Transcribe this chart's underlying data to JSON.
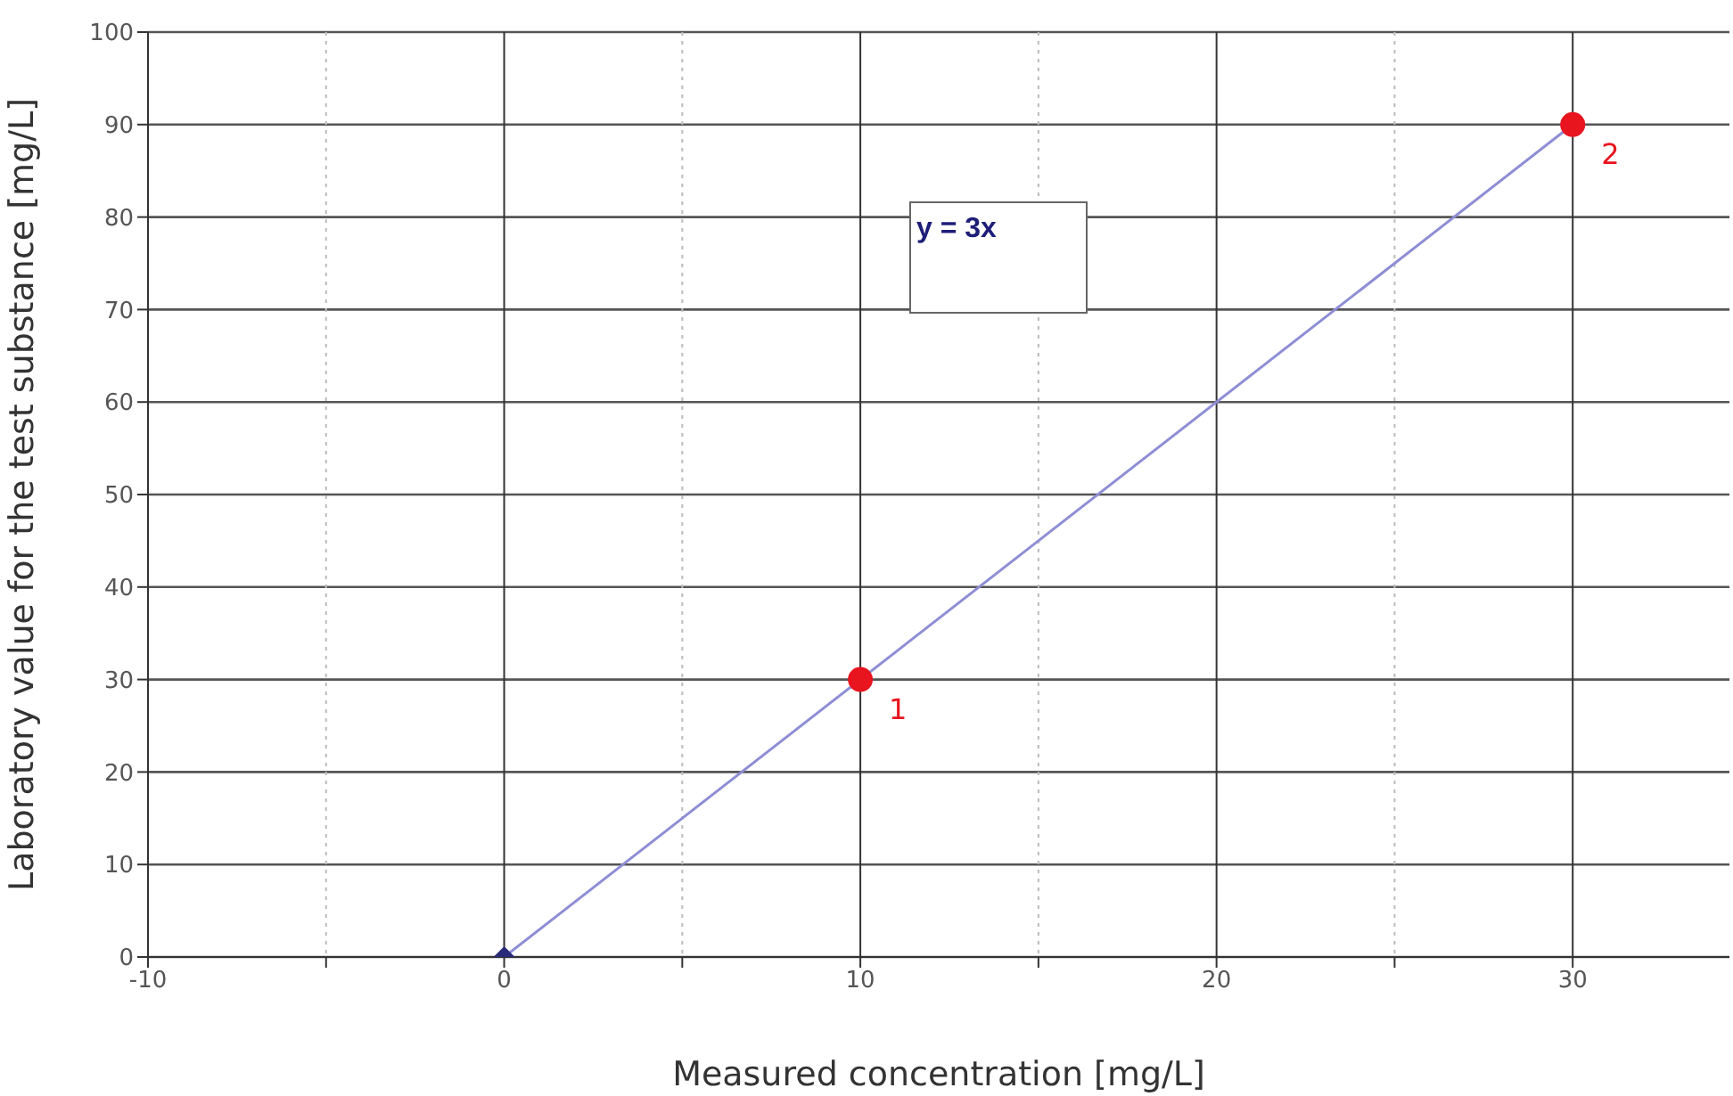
{
  "chart_data": {
    "type": "scatter",
    "xlabel": "Measured concentration [mg/L]",
    "ylabel": "Laboratory value for the test substance [mg/L]",
    "xlim": [
      -10,
      34.4
    ],
    "ylim": [
      0,
      100
    ],
    "xticks": [
      -10,
      {
        "value": -5,
        "label": null
      },
      0,
      {
        "value": 5,
        "label": null
      },
      10,
      {
        "value": 15,
        "label": null
      },
      20,
      {
        "value": 25,
        "label": null
      },
      30
    ],
    "yticks": [
      0,
      10,
      20,
      30,
      40,
      50,
      60,
      70,
      80,
      90,
      100
    ],
    "grid": true,
    "legend": false,
    "series": [
      {
        "type": "line",
        "color": "#8e8ed6",
        "marker": "none",
        "x": [
          0,
          30
        ],
        "values": [
          0,
          90
        ]
      },
      {
        "type": "scatter",
        "color": "#2a2a7a",
        "marker": "diamond",
        "x": [
          0
        ],
        "values": [
          0
        ]
      },
      {
        "type": "scatter",
        "color": "#e8141e",
        "marker": "circle",
        "x": [
          10,
          30
        ],
        "values": [
          30,
          90
        ]
      }
    ],
    "annotations": [
      "y = 3x",
      {
        "text": "1",
        "x": 10,
        "y": 30
      },
      {
        "text": "2",
        "x": 30,
        "y": 90
      }
    ]
  }
}
